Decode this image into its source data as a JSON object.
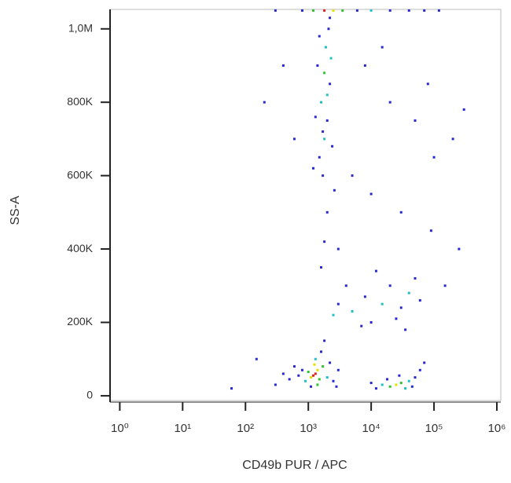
{
  "chart_data": {
    "type": "scatter",
    "x_label": "CD49b PUR / APC",
    "y_label": "SS-A",
    "x_scale": "log",
    "xlim": [
      0.7,
      1155000
    ],
    "xticks": [
      {
        "value": 1,
        "label": "10⁰"
      },
      {
        "value": 10,
        "label": "10¹"
      },
      {
        "value": 100,
        "label": "10²"
      },
      {
        "value": 1000,
        "label": "10³"
      },
      {
        "value": 10000,
        "label": "10⁴"
      },
      {
        "value": 100000,
        "label": "10⁵"
      },
      {
        "value": 1000000,
        "label": "10⁶"
      }
    ],
    "ylim": [
      -13000,
      1053000
    ],
    "yticks": [
      0,
      {
        "value": 200000,
        "label": "200K"
      },
      {
        "value": 400000,
        "label": "400K"
      },
      {
        "value": 600000,
        "label": "600K"
      },
      {
        "value": 800000,
        "label": "800K"
      },
      {
        "value": 1000000,
        "label": "1,0M"
      }
    ],
    "x": [
      1300,
      1200,
      1400,
      1100,
      1500,
      1000,
      1700,
      900,
      2000,
      1300,
      800,
      2500,
      1600,
      700,
      1100,
      3000,
      500,
      1800,
      1400,
      1250,
      2200,
      600,
      400,
      300,
      2800,
      25000,
      30000,
      20000,
      40000,
      15000,
      35000,
      50000,
      12000,
      60000,
      28000,
      45000,
      18000,
      70000,
      10000,
      1500,
      1800,
      2000,
      1600,
      2200,
      1400,
      1900,
      2100,
      1700,
      2400,
      1300,
      2300,
      1800,
      2000,
      1500,
      2600,
      1200,
      1700,
      2000,
      1800,
      1600,
      2200,
      3000,
      5000,
      8000,
      15000,
      20000,
      30000,
      40000,
      60000,
      10000,
      25000,
      4000,
      50000,
      12000,
      2500,
      35000,
      7000,
      800,
      1200,
      1800,
      2500,
      3500,
      6000,
      10000,
      20000,
      40000,
      70000,
      120000,
      300,
      8000,
      20000,
      50000,
      5000,
      100000,
      30000,
      200000,
      80000,
      15000,
      400,
      600,
      250000,
      150000,
      90000,
      60,
      150,
      3000,
      10000,
      300000,
      200
    ],
    "values": [
      60000,
      55000,
      70000,
      50000,
      45000,
      65000,
      80000,
      40000,
      50000,
      100000,
      70000,
      40000,
      120000,
      55000,
      25000,
      70000,
      45000,
      150000,
      30000,
      85000,
      90000,
      80000,
      60000,
      30000,
      25000,
      30000,
      35000,
      25000,
      40000,
      30000,
      20000,
      50000,
      20000,
      70000,
      55000,
      25000,
      45000,
      90000,
      35000,
      650000,
      700000,
      750000,
      800000,
      850000,
      900000,
      950000,
      1000000,
      600000,
      680000,
      760000,
      920000,
      880000,
      820000,
      980000,
      560000,
      620000,
      720000,
      500000,
      420000,
      350000,
      1030000,
      250000,
      230000,
      270000,
      250000,
      300000,
      240000,
      280000,
      260000,
      200000,
      210000,
      300000,
      320000,
      340000,
      220000,
      180000,
      190000,
      1050000,
      1050000,
      1050000,
      1050000,
      1050000,
      1050000,
      1050000,
      1050000,
      1050000,
      1050000,
      1050000,
      1050000,
      900000,
      800000,
      750000,
      600000,
      650000,
      500000,
      700000,
      850000,
      950000,
      900000,
      700000,
      400000,
      300000,
      450000,
      20000,
      100000,
      400000,
      550000,
      780000,
      800000
    ],
    "colors": [
      "#e02020",
      "#e02020",
      "#e0e000",
      "#e0e000",
      "#30c030",
      "#30c030",
      "#30c030",
      "#20c0c0",
      "#20c0c0",
      "#20c0c0",
      "#2828d0",
      "#2828d0",
      "#2828d0",
      "#2828d0",
      "#2828d0",
      "#2828d0",
      "#2828d0",
      "#2828d0",
      "#30c030",
      "#e0e000",
      "#2828d0",
      "#2828d0",
      "#2828d0",
      "#2828d0",
      "#2828d0",
      "#e0e000",
      "#30c030",
      "#30c030",
      "#20c0c0",
      "#20c0c0",
      "#20c0c0",
      "#2828d0",
      "#2828d0",
      "#2828d0",
      "#2828d0",
      "#2828d0",
      "#2828d0",
      "#2828d0",
      "#2828d0",
      "#2828d0",
      "#20c0c0",
      "#2828d0",
      "#20c0c0",
      "#2828d0",
      "#2828d0",
      "#20c0c0",
      "#2828d0",
      "#2828d0",
      "#2828d0",
      "#2828d0",
      "#20c0c0",
      "#30c030",
      "#20c0c0",
      "#2828d0",
      "#2828d0",
      "#2828d0",
      "#2828d0",
      "#2828d0",
      "#2828d0",
      "#2828d0",
      "#2828d0",
      "#2828d0",
      "#20c0c0",
      "#2828d0",
      "#20c0c0",
      "#2828d0",
      "#2828d0",
      "#20c0c0",
      "#2828d0",
      "#2828d0",
      "#2828d0",
      "#2828d0",
      "#2828d0",
      "#2828d0",
      "#20c0c0",
      "#2828d0",
      "#2828d0",
      "#2828d0",
      "#30c030",
      "#e02020",
      "#e0e000",
      "#30c030",
      "#2828d0",
      "#20c0c0",
      "#2828d0",
      "#2828d0",
      "#2828d0",
      "#2828d0",
      "#2828d0",
      "#2828d0",
      "#2828d0",
      "#2828d0",
      "#2828d0",
      "#2828d0",
      "#2828d0",
      "#2828d0",
      "#2828d0",
      "#2828d0",
      "#2828d0",
      "#2828d0",
      "#2828d0",
      "#2828d0",
      "#2828d0",
      "#2828d0",
      "#2828d0",
      "#2828d0",
      "#2828d0",
      "#2828d0",
      "#2828d0"
    ]
  }
}
